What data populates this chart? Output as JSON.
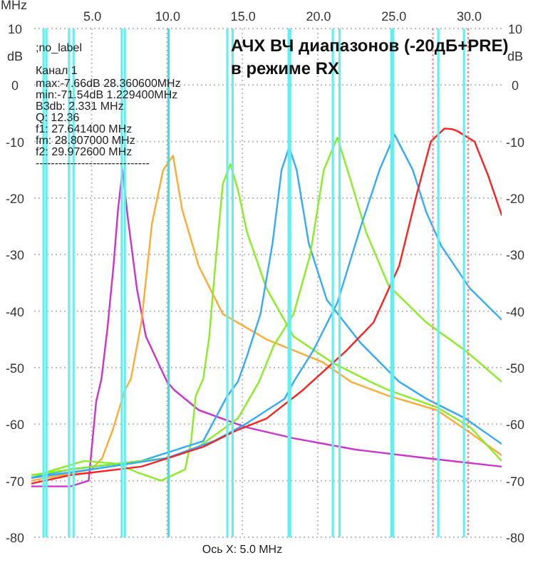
{
  "chart_data": {
    "type": "line",
    "title": "АЧХ ВЧ диапазонов (-20дБ+PRE)",
    "subtitle": "в режиме RX",
    "xlabel": "MHz",
    "ylabel": "dB",
    "y2label": "dB",
    "annotations": [
      ";no_label",
      "Канал 1",
      "max:-7.66dB 28.360600MHz",
      "min:-71.54dB 1.229400MHz",
      "B3db: 2.331 MHz",
      "Q: 12.36",
      "f1: 27.641400 MHz",
      "fm: 28.807000 MHz",
      "f2: 29.972600 MHz",
      "------------------------------",
      "Ось X: 5.0 MHz"
    ],
    "xlim": [
      1,
      32.2
    ],
    "xticks": [
      {
        "value": 5,
        "label": "5.0"
      },
      {
        "value": 10,
        "label": "10.0"
      },
      {
        "value": 15,
        "label": "15.0"
      },
      {
        "value": 20,
        "label": "20.0"
      },
      {
        "value": 25,
        "label": "25.0"
      },
      {
        "value": 30,
        "label": "30.0"
      }
    ],
    "ylim": [
      -80,
      10
    ],
    "yticks": [
      -80,
      -70,
      -60,
      -50,
      -40,
      -30,
      -20,
      -10,
      0,
      10
    ],
    "y2lim": [
      -80,
      10
    ],
    "y2ticks": [
      -80,
      -70,
      -60,
      -50,
      -40,
      -30,
      -20,
      -10,
      0,
      10
    ],
    "grid": true,
    "series": [
      {
        "color": "#cc33cc",
        "x": [
          1,
          3.6,
          4.8,
          5.3,
          5.65,
          6.05,
          6.45,
          6.75,
          7.05,
          7.4,
          8.0,
          8.6,
          10.0,
          10.5,
          12.1,
          15.2,
          18.4,
          22.5,
          27.2,
          32.2
        ],
        "values": [
          -71,
          -71,
          -70,
          -56,
          -52,
          -43,
          -32,
          -22,
          -15,
          -23.5,
          -36,
          -44.5,
          -52.5,
          -54,
          -57.5,
          -60.5,
          -62.5,
          -64.5,
          -66,
          -67.5
        ]
      },
      {
        "color": "#ffaa33",
        "x": [
          1,
          3,
          5,
          5.7,
          6.4,
          7.2,
          7.6,
          8.3,
          9.0,
          9.75,
          10.4,
          11.0,
          12.1,
          13.7,
          16.6,
          20.3,
          22.2,
          24.7,
          27.9,
          30.1,
          32.2
        ],
        "values": [
          -70,
          -69,
          -68,
          -66,
          -61,
          -54,
          -52,
          -42,
          -24.5,
          -15,
          -12.5,
          -22,
          -32,
          -40.5,
          -45,
          -49,
          -52.5,
          -55,
          -57.5,
          -61.5,
          -65.5
        ]
      },
      {
        "color": "#88ee22",
        "x": [
          1,
          2,
          4.5,
          6.7,
          8.0,
          9.6,
          11.2,
          11.6,
          11.9,
          12.4,
          12.8,
          13.2,
          13.7,
          14.2,
          14.7,
          15.3,
          16.6,
          18.4,
          20.9,
          23.5,
          24.7,
          27.9,
          30.1,
          32.2
        ],
        "values": [
          -69.5,
          -68.5,
          -66.5,
          -67,
          -68.5,
          -70,
          -68,
          -63,
          -55,
          -52,
          -44.5,
          -32,
          -17.5,
          -14,
          -18.5,
          -26,
          -36,
          -44.5,
          -49,
          -52.5,
          -54,
          -57,
          -60.5,
          -66.5
        ]
      },
      {
        "color": "#33aaff",
        "x": [
          1,
          3.6,
          8.3,
          12.4,
          14,
          14.7,
          15.3,
          16.2,
          17.0,
          17.6,
          18.1,
          18.6,
          19.4,
          20.6,
          22.8,
          25.4,
          27.2,
          29.8,
          32.2
        ],
        "values": [
          -69.5,
          -68,
          -66.5,
          -63,
          -55,
          -52.5,
          -48,
          -40.5,
          -28,
          -15,
          -11,
          -15,
          -28,
          -38,
          -45.5,
          -52.5,
          -55.5,
          -59,
          -63.5
        ]
      },
      {
        "color": "#88ee22",
        "x": [
          1,
          5,
          10,
          12.1,
          14.7,
          16.1,
          17.1,
          18.4,
          19.5,
          20.4,
          21.3,
          22.2,
          23.2,
          24.7,
          27.2,
          29.8,
          32.2
        ],
        "values": [
          -69,
          -67.5,
          -66,
          -64,
          -59,
          -52.5,
          -46,
          -40.5,
          -30,
          -15,
          -9.3,
          -17,
          -26,
          -35.5,
          -42,
          -47,
          -52.5
        ]
      },
      {
        "color": "#33aaff",
        "x": [
          1,
          5,
          10,
          13.1,
          15.2,
          17.8,
          18.4,
          19.7,
          21.3,
          22.8,
          24.1,
          25.1,
          26.3,
          27.2,
          28.2,
          30.1,
          32.2
        ],
        "values": [
          -69.5,
          -68,
          -66,
          -63,
          -60,
          -55.5,
          -52.5,
          -47,
          -38.5,
          -25.5,
          -15,
          -8.8,
          -15,
          -22.5,
          -28.5,
          -36,
          -41.5
        ]
      },
      {
        "color": "#ff2020",
        "x": [
          1,
          3.6,
          8.3,
          12.4,
          14.7,
          16.6,
          19.0,
          19.4,
          21.9,
          23.7,
          25.4,
          26.6,
          27.5,
          28.4,
          28.9,
          29.3,
          30.4,
          31.3,
          32.2
        ],
        "values": [
          -70.5,
          -69,
          -67.5,
          -64,
          -61,
          -59,
          -54,
          -53,
          -47,
          -42,
          -32,
          -19,
          -10,
          -7.7,
          -7.8,
          -8.2,
          -10,
          -16,
          -23
        ]
      }
    ],
    "ref_lines": [
      {
        "axis": "x",
        "value": 1.81,
        "color": "#66eeee"
      },
      {
        "axis": "x",
        "value": 2.0,
        "color": "#66eeee"
      },
      {
        "axis": "x",
        "value": 3.5,
        "color": "#66eeee"
      },
      {
        "axis": "x",
        "value": 3.8,
        "color": "#66eeee"
      },
      {
        "axis": "x",
        "value": 7.0,
        "color": "#66eeee"
      },
      {
        "axis": "x",
        "value": 7.2,
        "color": "#66eeee"
      },
      {
        "axis": "x",
        "value": 10.1,
        "color": "#33e6e6"
      },
      {
        "axis": "x",
        "value": 14.0,
        "color": "#66eeee"
      },
      {
        "axis": "x",
        "value": 14.35,
        "color": "#66eeee"
      },
      {
        "axis": "x",
        "value": 18.07,
        "color": "#66eeee"
      },
      {
        "axis": "x",
        "value": 18.17,
        "color": "#66eeee"
      },
      {
        "axis": "x",
        "value": 21.0,
        "color": "#66eeee"
      },
      {
        "axis": "x",
        "value": 21.45,
        "color": "#66eeee"
      },
      {
        "axis": "x",
        "value": 24.89,
        "color": "#66eeee"
      },
      {
        "axis": "x",
        "value": 24.99,
        "color": "#66eeee"
      },
      {
        "axis": "x",
        "value": 28.0,
        "color": "#66eeee"
      },
      {
        "axis": "x",
        "value": 29.7,
        "color": "#66eeee"
      },
      {
        "axis": "x",
        "value": 27.6414,
        "color": "#ff8080",
        "line_style": "dotted"
      },
      {
        "axis": "x",
        "value": 29.9726,
        "color": "#ff8080",
        "line_style": "dotted"
      }
    ]
  }
}
